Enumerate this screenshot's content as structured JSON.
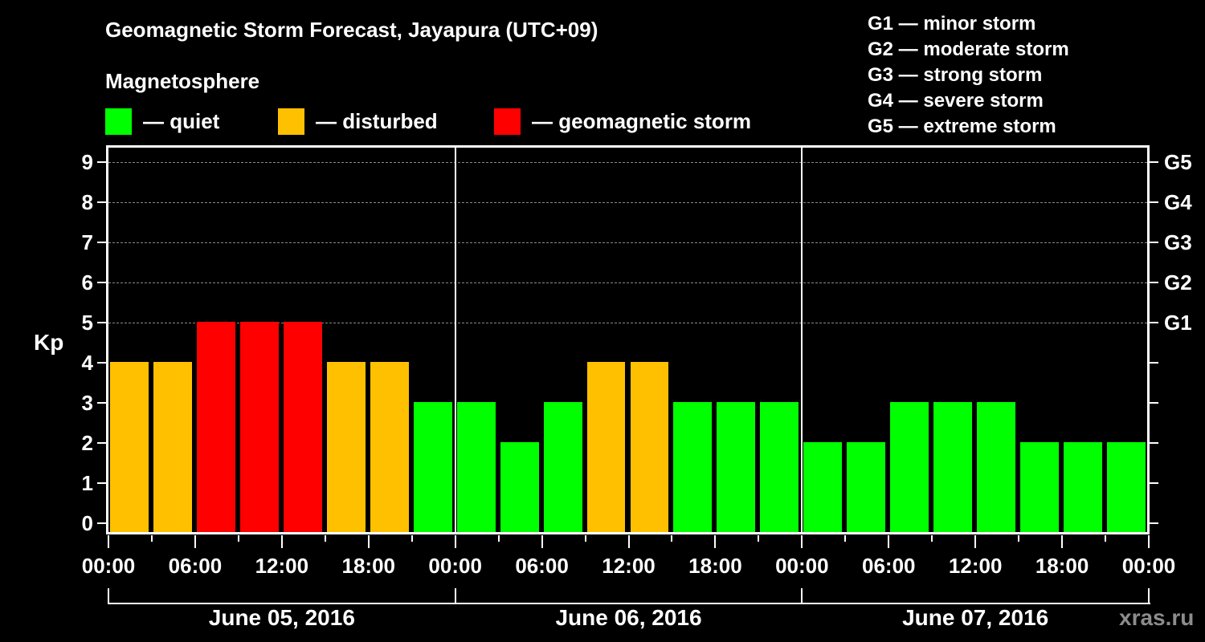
{
  "title": "Geomagnetic Storm Forecast, Jayapura (UTC+09)",
  "subtitle": "Magnetosphere",
  "legend": [
    {
      "label": "— quiet",
      "color": "#00ff00"
    },
    {
      "label": "— disturbed",
      "color": "#ffc000"
    },
    {
      "label": "— geomagnetic storm",
      "color": "#ff0000"
    }
  ],
  "g_scale": [
    "G1 — minor storm",
    "G2 — moderate storm",
    "G3 — strong storm",
    "G4 — severe storm",
    "G5 — extreme storm"
  ],
  "y_axis_label": "Kp",
  "credit": "xras.ru",
  "chart_data": {
    "type": "bar",
    "title": "Geomagnetic Storm Forecast, Jayapura (UTC+09)",
    "xlabel": "",
    "ylabel": "Kp",
    "ylim": [
      0,
      9
    ],
    "yticks": [
      0,
      1,
      2,
      3,
      4,
      5,
      6,
      7,
      8,
      9
    ],
    "right_axis_ticks": [
      {
        "kp": 5,
        "label": "G1"
      },
      {
        "kp": 6,
        "label": "G2"
      },
      {
        "kp": 7,
        "label": "G3"
      },
      {
        "kp": 8,
        "label": "G4"
      },
      {
        "kp": 9,
        "label": "G5"
      }
    ],
    "grid": "dashed horizontal at Kp 5-9",
    "x_tick_labels": [
      "00:00",
      "06:00",
      "12:00",
      "18:00",
      "00:00",
      "06:00",
      "12:00",
      "18:00",
      "00:00",
      "06:00",
      "12:00",
      "18:00",
      "00:00"
    ],
    "days": [
      "June 05, 2016",
      "June 06, 2016",
      "June 07, 2016"
    ],
    "categories": [
      "Jun05 00-03",
      "Jun05 03-06",
      "Jun05 06-09",
      "Jun05 09-12",
      "Jun05 12-15",
      "Jun05 15-18",
      "Jun05 18-21",
      "Jun05 21-24",
      "Jun06 00-03",
      "Jun06 03-06",
      "Jun06 06-09",
      "Jun06 09-12",
      "Jun06 12-15",
      "Jun06 15-18",
      "Jun06 18-21",
      "Jun06 21-24",
      "Jun07 00-03",
      "Jun07 03-06",
      "Jun07 06-09",
      "Jun07 09-12",
      "Jun07 12-15",
      "Jun07 15-18",
      "Jun07 18-21",
      "Jun07 21-24"
    ],
    "values": [
      4,
      4,
      5,
      5,
      5,
      4,
      4,
      3,
      3,
      2,
      3,
      4,
      4,
      3,
      3,
      3,
      2,
      2,
      3,
      3,
      3,
      2,
      2,
      2
    ],
    "colors": {
      "quiet": "#00ff00",
      "disturbed": "#ffc000",
      "storm": "#ff0000"
    },
    "legend": [
      "quiet",
      "disturbed",
      "geomagnetic storm"
    ]
  }
}
